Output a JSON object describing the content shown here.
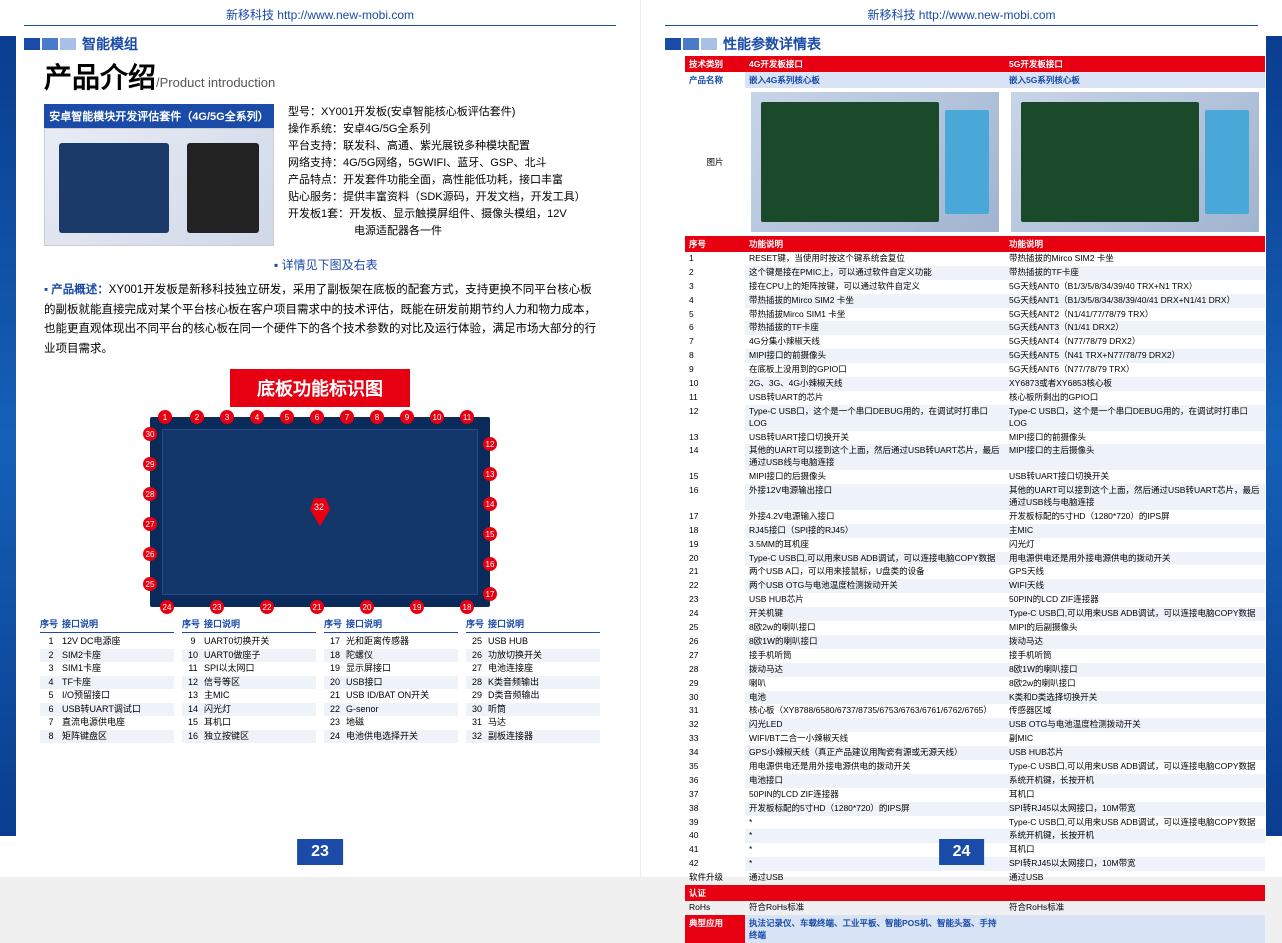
{
  "header": "新移科技 http://www.new-mobi.com",
  "left": {
    "section": "智能模组",
    "title": "产品介绍",
    "title_sub": "/Product introduction",
    "kit_header": "安卓智能模块开发评估套件（4G/5G全系列）",
    "specs": [
      "型号：XY001开发板(安卓智能核心板评估套件)",
      "操作系统：安卓4G/5G全系列",
      "平台支持：联发科、高通、紫光展锐多种模块配置",
      "网络支持：4G/5G网络，5GWIFI、蓝牙、GSP、北斗",
      "产品特点：开发套件功能全面，高性能低功耗，接口丰富",
      "贴心服务：提供丰富资料（SDK源码，开发文档，开发工具）",
      "开发板1套：开发板、显示触摸屏组件、摄像头模组，12V",
      "　　　　　　电源适配器各一件"
    ],
    "detail_note": "详情见下图及右表",
    "overview_label": "产品概述：",
    "overview": "XY001开发板是新移科技独立研发，采用了副板架在底板的配套方式，支持更换不同平台核心板的副板就能直接完成对某个平台核心板在客户项目需求中的技术评估，既能在研发前期节约人力和物力成本，也能更直观体现出不同平台的核心板在同一个硬件下的各个技术参数的对比及运行体验，满足市场大部分的行业项目需求。",
    "red_banner": "底板功能标识图",
    "itable_headers": [
      "序号",
      "接口说明"
    ],
    "itable": [
      [
        [
          "1",
          "12V DC电源座"
        ],
        [
          "2",
          "SIM2卡座"
        ],
        [
          "3",
          "SIM1卡座"
        ],
        [
          "4",
          "TF卡座"
        ],
        [
          "5",
          "I/O预留接口"
        ],
        [
          "6",
          "USB转UART调试口"
        ],
        [
          "7",
          "直流电源供电座"
        ],
        [
          "8",
          "矩阵键盘区"
        ]
      ],
      [
        [
          "9",
          "UART0切换开关"
        ],
        [
          "10",
          "UART0做座子"
        ],
        [
          "11",
          "SPI以太网口"
        ],
        [
          "12",
          "信号等区"
        ],
        [
          "13",
          "主MIC"
        ],
        [
          "14",
          "闪光灯"
        ],
        [
          "15",
          "耳机口"
        ],
        [
          "16",
          "独立按键区"
        ]
      ],
      [
        [
          "17",
          "光和距离传感器"
        ],
        [
          "18",
          "陀螺仪"
        ],
        [
          "19",
          "显示屏接口"
        ],
        [
          "20",
          "USB接口"
        ],
        [
          "21",
          "USB ID/BAT ON开关"
        ],
        [
          "22",
          "G-senor"
        ],
        [
          "23",
          "地磁"
        ],
        [
          "24",
          "电池供电选择开关"
        ]
      ],
      [
        [
          "25",
          "USB HUB"
        ],
        [
          "26",
          "功放切换开关"
        ],
        [
          "27",
          "电池连接座"
        ],
        [
          "28",
          "K类音频输出"
        ],
        [
          "29",
          "D类音频输出"
        ],
        [
          "30",
          "听筒"
        ],
        [
          "31",
          "马达"
        ],
        [
          "32",
          "副板连接器"
        ]
      ]
    ],
    "pagenum": "23"
  },
  "right": {
    "section": "性能参数详情表",
    "th": [
      "技术类别",
      "4G开发板接口",
      "5G开发板接口"
    ],
    "product_row": [
      "产品名称",
      "嵌入4G系列核心板",
      "嵌入5G系列核心板"
    ],
    "img_label": "图片",
    "func_hdr": [
      "序号",
      "功能说明",
      "功能说明"
    ],
    "rows": [
      [
        "1",
        "RESET键，当使用时按这个键系统会复位",
        "带热插拔的Mirco SIM2 卡坐"
      ],
      [
        "2",
        "这个键是接在PMIC上，可以通过软件自定义功能",
        "带热插拔的TF卡座"
      ],
      [
        "3",
        "接在CPU上的矩阵按键，可以通过软件自定义",
        "5G天线ANT0（B1/3/5/8/34/39/40 TRX+N1 TRX）"
      ],
      [
        "4",
        "带热插拔的Mirco SIM2 卡坐",
        "5G天线ANT1（B1/3/5/8/34/38/39/40/41 DRX+N1/41 DRX）"
      ],
      [
        "5",
        "带热插拔Mirco SIM1 卡坐",
        "5G天线ANT2（N1/41/77/78/79 TRX）"
      ],
      [
        "6",
        "带热插拔的TF卡座",
        "5G天线ANT3（N1/41 DRX2）"
      ],
      [
        "7",
        "4G分集小辣椒天线",
        "5G天线ANT4（N77/78/79 DRX2）"
      ],
      [
        "8",
        "MIPI接口的前摄像头",
        "5G天线ANT5（N41 TRX+N77/78/79 DRX2）"
      ],
      [
        "9",
        "在底板上没用到的GPIO口",
        "5G天线ANT6（N77/78/79 TRX）"
      ],
      [
        "10",
        "2G、3G、4G小辣椒天线",
        "XY6873或者XY6853核心板"
      ],
      [
        "11",
        "USB转UART的芯片",
        "核心板所剩出的GPIO口"
      ],
      [
        "12",
        "Type-C USB口，这个是一个串口DEBUG用的，在调试时打串口LOG",
        "Type-C USB口，这个是一个串口DEBUG用的，在调试时打串口LOG"
      ],
      [
        "13",
        "USB转UART接口切换开关",
        "MIPI接口的前摄像头"
      ],
      [
        "14",
        "其他的UART可以接到这个上面，然后通过USB转UART芯片，最后通过USB线与电脑连接",
        "MIPI接口的主后摄像头"
      ],
      [
        "15",
        "MIPI接口的后摄像头",
        "USB转UART接口切换开关"
      ],
      [
        "16",
        "外接12V电源输出接口",
        "其他的UART可以接到这个上面，然后通过USB转UART芯片，最后通过USB线与电脑连接"
      ],
      [
        "17",
        "外接4.2V电源输入接口",
        "开发板标配的5寸HD（1280*720）的IPS屏"
      ],
      [
        "18",
        "RJ45接口（SPI接的RJ45）",
        "主MIC"
      ],
      [
        "19",
        "3.5MM的耳机座",
        "闪光灯"
      ],
      [
        "20",
        "Type-C USB口,可以用来USB ADB调试，可以连接电脑COPY数据",
        "用电源供电还是用外接电源供电的拨动开关"
      ],
      [
        "21",
        "两个USB A口，可以用来接鼠标，U盘类的设备",
        "GPS天线"
      ],
      [
        "22",
        "两个USB OTG与电池温度检测拨动开关",
        "WIFI天线"
      ],
      [
        "23",
        "USB HUB芯片",
        "50PIN的LCD ZIF连接器"
      ],
      [
        "24",
        "开关机键",
        "Type-C USB口,可以用来USB ADB调试，可以连接电脑COPY数据"
      ],
      [
        "25",
        "8欧2w的喇叭接口",
        "MIPI的后副摄像头"
      ],
      [
        "26",
        "8欧1W的喇叭接口",
        "拨动马达"
      ],
      [
        "27",
        "接手机听筒",
        "接手机听筒"
      ],
      [
        "28",
        "拨动马达",
        "8欧1W的喇叭接口"
      ],
      [
        "29",
        "喇叭",
        "8欧2w的喇叭接口"
      ],
      [
        "30",
        "电池",
        "K类和D类选择切换开关"
      ],
      [
        "31",
        "核心板（XY8788/6580/6737/8735/6753/6763/6761/6762/6765）",
        "传感器区域"
      ],
      [
        "32",
        "闪光LED",
        "USB OTG与电池温度检测拨动开关"
      ],
      [
        "33",
        "WIFI/BT二合一小辣椒天线",
        "副MIC"
      ],
      [
        "34",
        "GPS小辣椒天线（真正产品建议用陶瓷有源或无源天线）",
        "USB HUB芯片"
      ],
      [
        "35",
        "用电源供电还是用外接电源供电的拨动开关",
        "Type-C USB口,可以用来USB ADB调试，可以连接电脑COPY数据"
      ],
      [
        "36",
        "电池接口",
        "系统开机键，长按开机"
      ],
      [
        "37",
        "50PIN的LCD ZIF连接器",
        "耳机口"
      ],
      [
        "38",
        "开发板标配的5寸HD（1280*720）的IPS屏",
        "SPI转RJ45以太网接口，10M带宽"
      ],
      [
        "39",
        "*",
        "Type-C USB口,可以用来USB ADB调试，可以连接电脑COPY数据"
      ],
      [
        "40",
        "*",
        "系统开机键，长按开机"
      ],
      [
        "41",
        "*",
        "耳机口"
      ],
      [
        "42",
        "*",
        "SPI转RJ45以太网接口，10M带宽"
      ],
      [
        "软件升级",
        "通过USB",
        "通过USB"
      ]
    ],
    "cert_hdr": "认证",
    "cert_row": [
      "RoHs",
      "符合RoHs标准",
      "符合RoHs标准"
    ],
    "app_hdr": "典型应用",
    "app_text": "执法记录仪、车载终端、工业平板、智能POS机、智能头盔、手持终端",
    "pagenum": "24"
  }
}
